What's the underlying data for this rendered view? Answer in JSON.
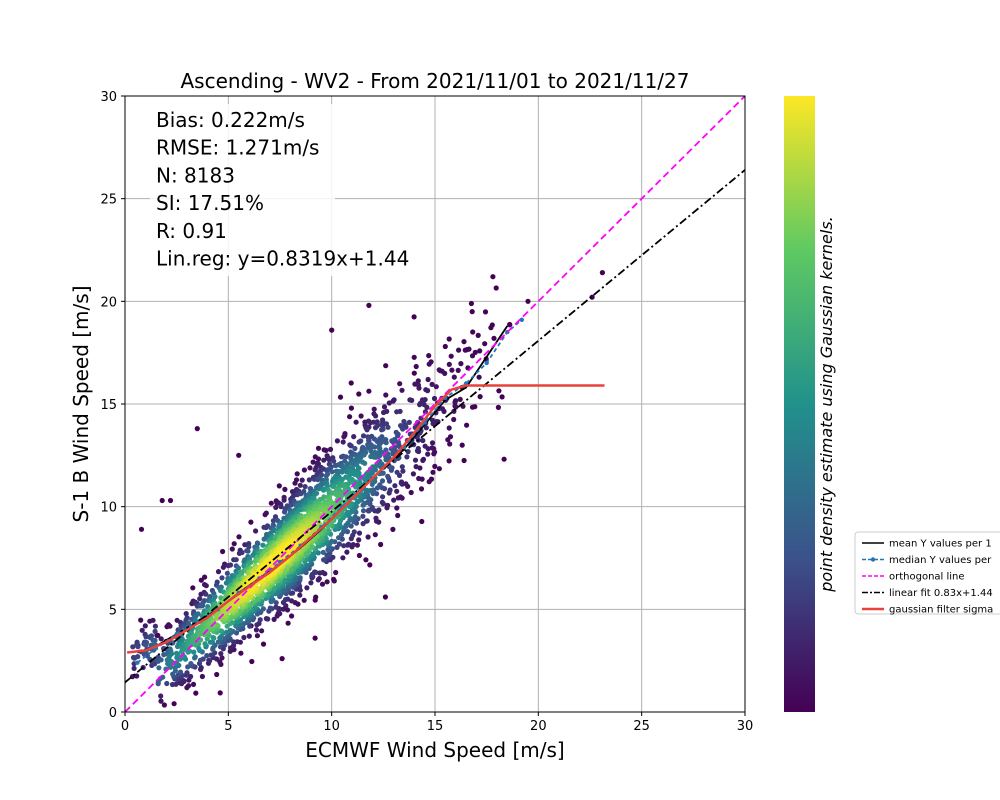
{
  "chart_data": {
    "type": "scatter",
    "title": "Ascending - WV2 - From 2021/11/01 to 2021/11/27",
    "xlabel": "ECMWF Wind Speed [m/s]",
    "ylabel": "S-1 B Wind Speed [m/s]",
    "xlim": [
      0,
      30
    ],
    "ylim": [
      0,
      30
    ],
    "xticks": [
      "0",
      "5",
      "10",
      "15",
      "20",
      "25",
      "30"
    ],
    "yticks": [
      "0",
      "5",
      "10",
      "15",
      "20",
      "25",
      "30"
    ],
    "grid": true,
    "stats": [
      "Bias: 0.222m/s",
      "RMSE: 1.271m/s",
      "N: 8183",
      "SI: 17.51%",
      "R: 0.91",
      "Lin.reg: y=0.8319x+1.44"
    ],
    "colorbar_label": "point density estimate using Gaussian kernels.",
    "colormap": [
      "#440154",
      "#3b528b",
      "#21918c",
      "#5ec962",
      "#fde725"
    ],
    "legend_placement": "outside-right",
    "series": [
      {
        "name": "mean Y values per 1",
        "color": "#000000",
        "style": "solid",
        "x": [
          0.6,
          1.5,
          2.5,
          3.5,
          4.5,
          5.5,
          6.5,
          7.5,
          8.5,
          9.5,
          10.5,
          11.5,
          12.5,
          13.5,
          14.5,
          15.5,
          16.5,
          17.5,
          18.5
        ],
        "y": [
          2.9,
          3.2,
          3.8,
          4.4,
          5.0,
          5.8,
          6.5,
          7.2,
          8.0,
          8.9,
          9.9,
          10.9,
          11.9,
          12.8,
          14.0,
          15.2,
          15.8,
          17.3,
          18.8
        ]
      },
      {
        "name": "median Y values per",
        "color": "#1f77b4",
        "style": "dashed-marker",
        "x": [
          0.6,
          1.5,
          2.5,
          3.5,
          4.5,
          5.5,
          6.5,
          7.5,
          8.5,
          9.5,
          10.5,
          11.5,
          12.5,
          13.5,
          14.5,
          15.5,
          16.5,
          17.5,
          18.5,
          19.2
        ],
        "y": [
          2.4,
          3.1,
          3.8,
          4.4,
          5.0,
          5.8,
          6.5,
          7.3,
          8.1,
          9.0,
          10.0,
          10.9,
          11.9,
          12.9,
          14.1,
          15.3,
          16.0,
          17.0,
          18.5,
          19.1
        ]
      },
      {
        "name": "orthogonal line",
        "color": "#ff00ff",
        "style": "dashed",
        "x": [
          0,
          30
        ],
        "y": [
          0,
          30
        ]
      },
      {
        "name": "linear fit 0.83x+1.44",
        "color": "#000000",
        "style": "dashdot",
        "x": [
          0,
          30
        ],
        "y": [
          1.44,
          26.4
        ]
      },
      {
        "name": "gaussian filter sigma",
        "color": "#e8423c",
        "style": "solid",
        "x": [
          0.1,
          1.0,
          2.0,
          3.0,
          4.0,
          5.0,
          6.0,
          7.0,
          8.0,
          9.0,
          10.0,
          11.0,
          12.0,
          13.0,
          14.0,
          15.0,
          15.8,
          16.5,
          18.0,
          20.0,
          23.2
        ],
        "y": [
          2.9,
          3.0,
          3.4,
          4.0,
          4.6,
          5.4,
          6.1,
          6.8,
          7.6,
          8.5,
          9.4,
          10.4,
          11.4,
          12.4,
          13.6,
          14.9,
          15.7,
          15.9,
          15.9,
          15.9,
          15.9
        ]
      }
    ]
  }
}
